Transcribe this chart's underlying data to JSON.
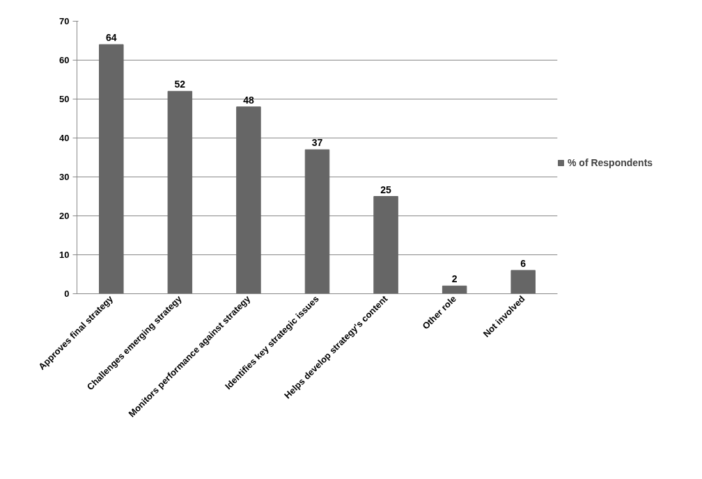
{
  "chart_data": {
    "type": "bar",
    "categories": [
      "Approves final strategy",
      "Challenges emerging strategy",
      "Monitors performance against strategy",
      "Identifies key strategic issues",
      "Helps develop strategy's content",
      "Other role",
      "Not involved"
    ],
    "series": [
      {
        "name": "% of Respondents",
        "color": "#666666",
        "values": [
          64,
          52,
          48,
          37,
          25,
          2,
          6
        ]
      }
    ],
    "ylim": [
      0,
      70
    ],
    "yticks": [
      0,
      10,
      20,
      30,
      40,
      50,
      60,
      70
    ],
    "grid": "y",
    "legend": "right",
    "data_labels": true
  }
}
